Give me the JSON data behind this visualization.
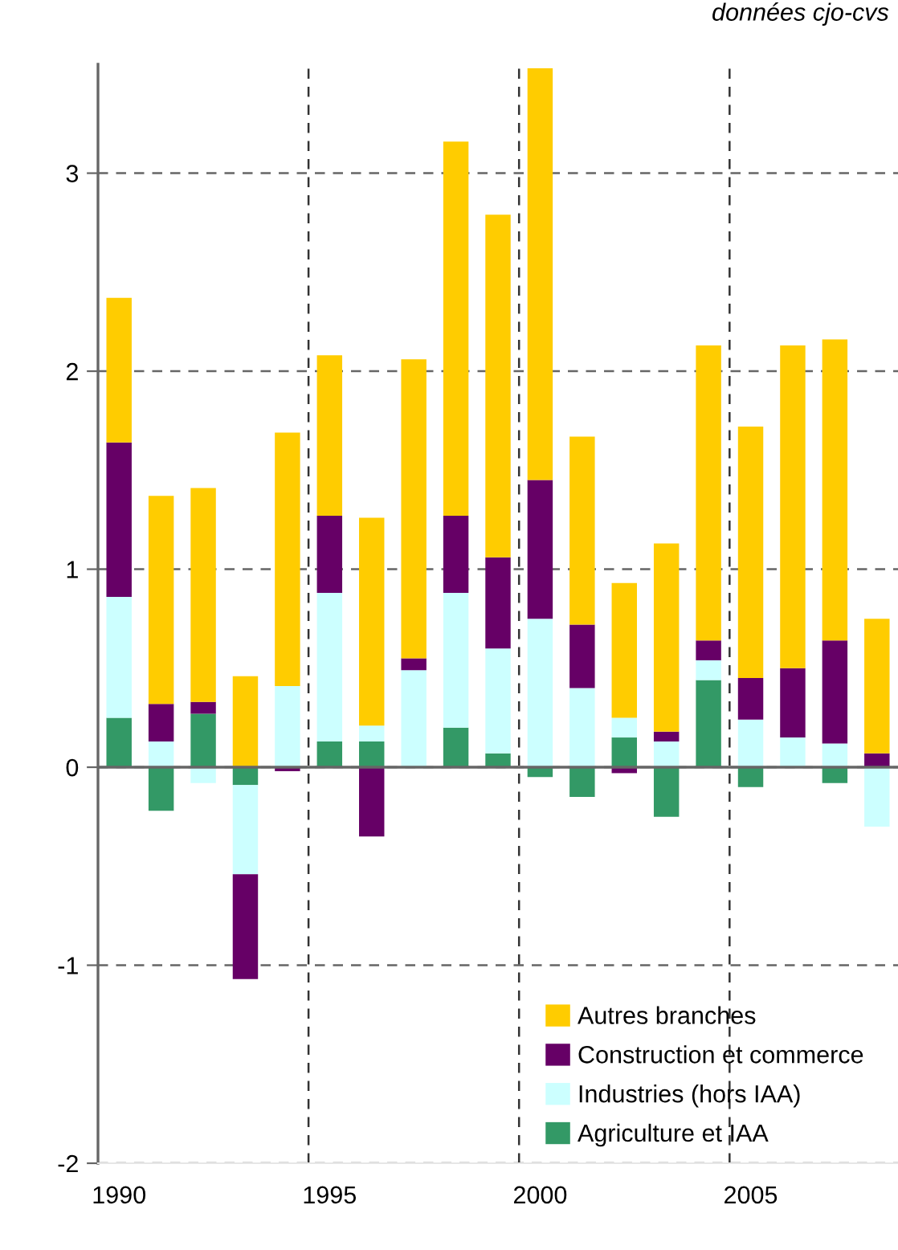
{
  "chart_data": {
    "type": "bar",
    "stacked": true,
    "annotations": [
      "données cjo-cvs"
    ],
    "categories": [
      "1990",
      null,
      null,
      null,
      null,
      "1995",
      null,
      null,
      null,
      null,
      "2000",
      null,
      null,
      null,
      null,
      "2005",
      null,
      null,
      null
    ],
    "series": [
      {
        "name": "Agriculture et IAA",
        "color": "#339966",
        "values": [
          0.25,
          -0.22,
          0.27,
          -0.09,
          null,
          0.13,
          0.13,
          0,
          0.2,
          0.07,
          -0.05,
          -0.15,
          0.15,
          -0.25,
          0.44,
          -0.1,
          null,
          -0.08,
          null
        ]
      },
      {
        "name": "Industries (hors IAA)",
        "color": "#ccffff",
        "values": [
          0.61,
          0.13,
          -0.08,
          -0.45,
          0.41,
          0.75,
          0.08,
          0.49,
          0.68,
          0.53,
          0.75,
          0.4,
          0.1,
          0.13,
          0.1,
          0.24,
          0.15,
          0.12,
          -0.3
        ]
      },
      {
        "name": "Construction et commerce",
        "color": "#660066",
        "values": [
          0.78,
          0.19,
          0.06,
          -0.53,
          -0.02,
          0.39,
          -0.35,
          0.06,
          0.39,
          0.46,
          0.7,
          0.32,
          -0.03,
          0.05,
          0.1,
          0.21,
          0.35,
          0.52,
          0.07
        ]
      },
      {
        "name": "Autres branches",
        "color": "#ffcc00",
        "values": [
          0.73,
          1.05,
          1.08,
          0.46,
          1.28,
          0.81,
          1.05,
          1.51,
          1.89,
          1.73,
          2.08,
          0.95,
          0.68,
          0.95,
          1.49,
          1.27,
          1.63,
          1.52,
          0.68
        ]
      }
    ],
    "ylim": [
      -2,
      3.55
    ],
    "yticks": [
      -2,
      -1,
      0,
      1,
      2,
      3
    ],
    "grid": true,
    "legend": "bottom right"
  }
}
